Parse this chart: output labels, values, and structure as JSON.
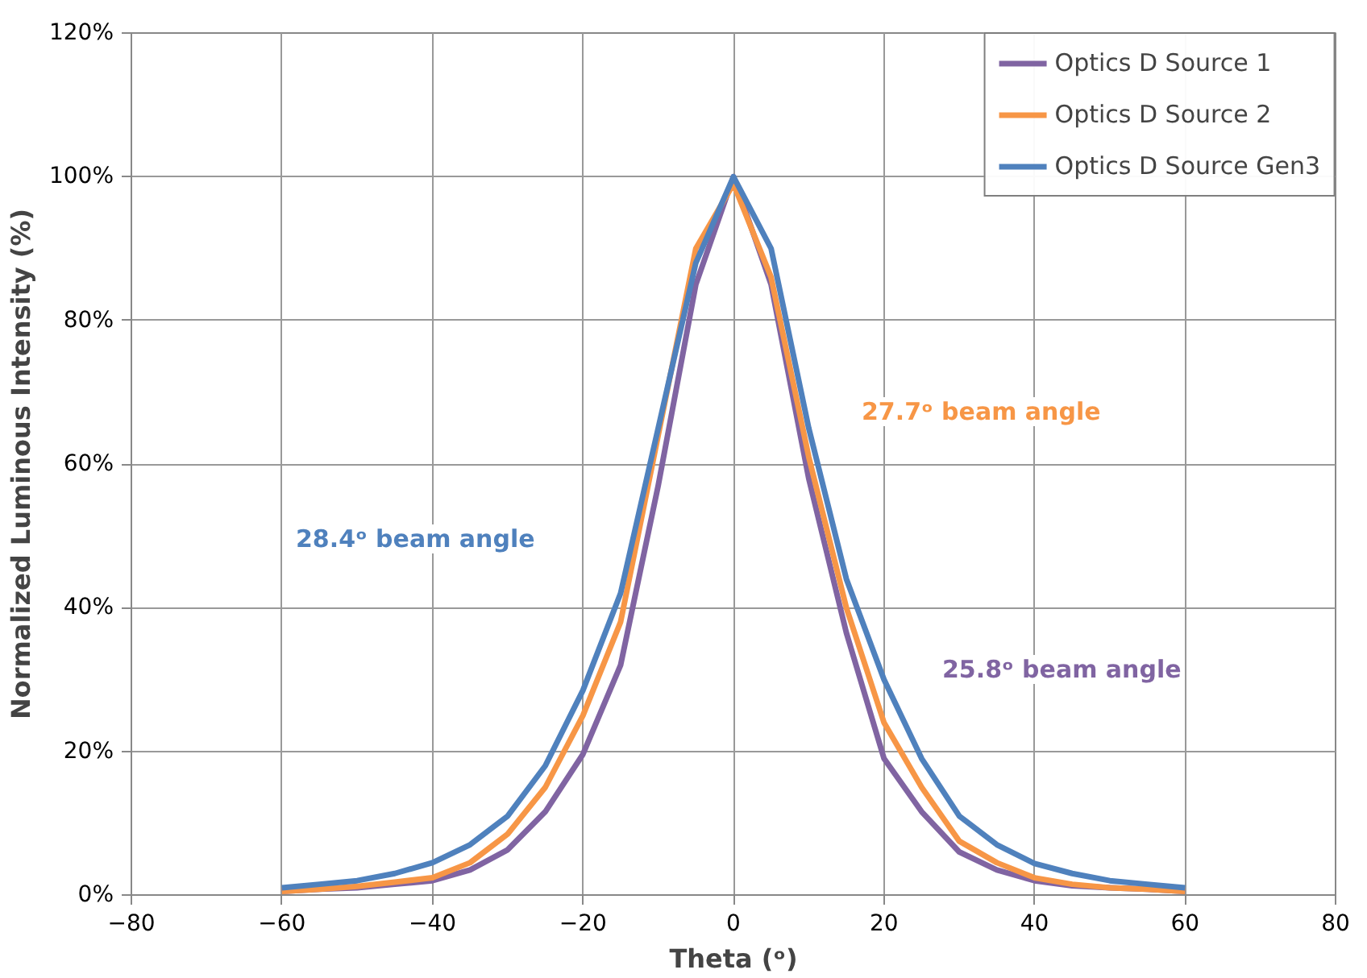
{
  "chart_data": {
    "type": "line",
    "xlabel": "Theta (ᵒ)",
    "ylabel": "Normalized Luminous Intensity (%)",
    "x": [
      -60,
      -55,
      -50,
      -45,
      -40,
      -35,
      -30,
      -25,
      -20,
      -15,
      -10,
      -5,
      0,
      5,
      10,
      15,
      20,
      25,
      30,
      35,
      40,
      45,
      50,
      55,
      60
    ],
    "series": [
      {
        "name": "Optics D Source 1",
        "color": "#8064a2",
        "values": [
          0.5,
          0.8,
          1,
          1.5,
          2,
          3.5,
          6.3,
          11.6,
          19.6,
          32,
          57,
          85,
          100,
          85,
          58,
          36.5,
          19,
          11.6,
          6,
          3.5,
          2,
          1.3,
          1,
          0.8,
          0.5
        ]
      },
      {
        "name": "Optics D Source 2",
        "color": "#f79646",
        "values": [
          0.5,
          0.8,
          1.2,
          1.8,
          2.4,
          4.5,
          8.5,
          15,
          25,
          38,
          64,
          90,
          99,
          86,
          61,
          40,
          24,
          15,
          7.5,
          4.5,
          2.4,
          1.5,
          1,
          0.8,
          0.5
        ]
      },
      {
        "name": "Optics D Source Gen3",
        "color": "#4f81bd",
        "values": [
          1,
          1.5,
          2,
          3,
          4.5,
          7,
          11,
          18,
          28.5,
          42,
          65,
          88,
          100,
          90,
          65,
          44,
          30,
          19,
          11,
          7,
          4.4,
          3,
          2,
          1.5,
          1
        ]
      }
    ],
    "xlim": [
      -80,
      80
    ],
    "xticks": [
      -80,
      -60,
      -40,
      -20,
      0,
      20,
      40,
      60,
      80
    ],
    "ylim": [
      0,
      120
    ],
    "yticks": [
      {
        "value": 0,
        "label": "0%"
      },
      {
        "value": 20,
        "label": "20%"
      },
      {
        "value": 40,
        "label": "40%"
      },
      {
        "value": 60,
        "label": "60%"
      },
      {
        "value": 80,
        "label": "80%"
      },
      {
        "value": 100,
        "label": "100%"
      },
      {
        "value": 120,
        "label": "120%"
      }
    ],
    "annotations": [
      "28.4ᵒ beam angle",
      "27.7ᵒ beam angle",
      "25.8ᵒ beam angle"
    ],
    "grid": true,
    "legend": "top right",
    "marker": "none",
    "line_style": "solid"
  }
}
